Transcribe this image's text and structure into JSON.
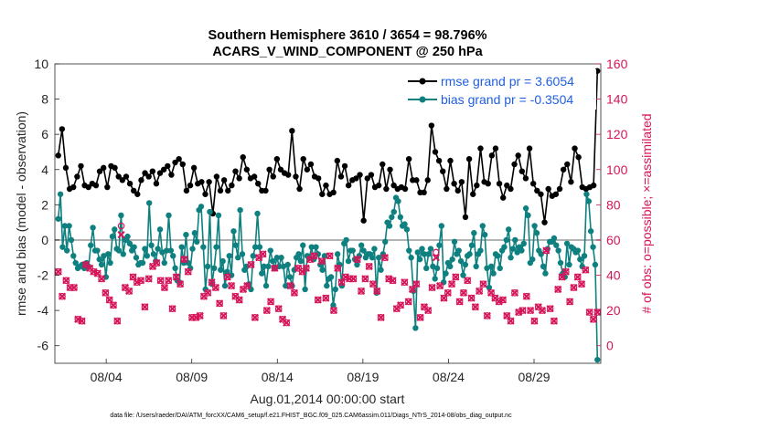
{
  "chart_data": {
    "type": "line",
    "title": "Southern Hemisphere 3610 / 3654 = 98.796%",
    "subtitle": "ACARS_V_WIND_COMPONENT @ 250 hPa",
    "xlabel": "Aug.01,2014 00:00:00 start",
    "ylabel": "rmse and bias (model - observation)",
    "y2label": "# of obs: o=possible; ×=assimilated",
    "xlim": [
      1,
      32.9
    ],
    "ylim": [
      -7,
      10
    ],
    "y2lim": [
      -10,
      160
    ],
    "x_ticks": [
      4,
      9,
      14,
      19,
      24,
      29
    ],
    "x_tick_labels": [
      "08/04",
      "08/09",
      "08/14",
      "08/19",
      "08/24",
      "08/29"
    ],
    "y_ticks": [
      -6,
      -4,
      -2,
      0,
      2,
      4,
      6,
      8,
      10
    ],
    "y2_ticks": [
      0,
      20,
      40,
      60,
      80,
      100,
      120,
      140,
      160
    ],
    "footer": "data file: /Users/raeder/DAI/ATM_forcXX/CAM6_setup/f.e21.FHIST_BGC.f09_025.CAM6assim.011/Diags_NTrS_2014-08/obs_diag_output.nc",
    "series": [
      {
        "name": "rmse grand pr = 3.6054",
        "color": "#000000",
        "values": [
          4.8,
          6.3,
          4.1,
          2.9,
          3.0,
          3.6,
          4.2,
          3.1,
          3.0,
          3.2,
          3.1,
          3.9,
          4.1,
          3.0,
          4.2,
          4.1,
          3.6,
          3.4,
          3.6,
          3.2,
          2.8,
          2.6,
          3.4,
          3.8,
          3.6,
          3.9,
          3.2,
          3.8,
          4.0,
          4.2,
          3.7,
          4.4,
          4.6,
          4.3,
          2.8,
          3.1,
          4.1,
          3.2,
          3.3,
          2.6,
          3.3,
          1.5,
          3.6,
          2.8,
          3.4,
          2.8,
          3.1,
          3.9,
          3.5,
          4.7,
          4.0,
          3.5,
          3.6,
          3.2,
          2.8,
          2.8,
          4.0,
          3.6,
          4.6,
          4.0,
          3.8,
          3.7,
          6.2,
          3.6,
          2.9,
          4.6,
          4.0,
          4.3,
          3.6,
          3.5,
          2.6,
          3.1,
          2.6,
          2.7,
          4.5,
          3.6,
          4.2,
          3.1,
          3.4,
          3.5,
          3.7,
          1.1,
          3.5,
          3.7,
          3.0,
          3.1,
          4.3,
          2.9,
          4.0,
          3.1,
          2.9,
          3.0,
          2.9,
          4.6,
          3.4,
          3.4,
          2.7,
          2.7,
          3.4,
          6.5,
          5.0,
          4.5,
          3.9,
          2.9,
          4.5,
          3.2,
          2.8,
          3.3,
          1.3,
          4.6,
          2.6,
          3.1,
          5.2,
          3.3,
          3.2,
          4.8,
          5.2,
          3.2,
          2.4,
          3.1,
          2.9,
          4.3,
          4.8,
          3.9,
          3.5,
          5.2,
          3.2,
          2.8,
          2.6,
          1.0,
          2.9,
          2.5,
          2.6,
          2.9,
          4.0,
          4.3,
          3.3,
          5.2,
          4.7,
          3.0,
          2.9,
          3.0,
          3.1,
          9.6
        ],
        "marker": "dot"
      },
      {
        "name": "bias grand pr = -0.3504",
        "color": "#0e8080",
        "values": [
          1.2,
          2.6,
          -0.4,
          0.8,
          -0.6,
          0.8,
          0.0,
          -0.9,
          -1.3,
          -1.6,
          -1.5,
          -1.4,
          -1.6,
          -1.3,
          -1.5,
          -0.3,
          0.7,
          -0.6,
          -0.6,
          -1.1,
          -1.4,
          -0.9,
          -2.1,
          -0.8,
          -1.3,
          0.2,
          0.6,
          -0.5,
          -0.6,
          1.4,
          -0.8,
          0.0,
          0.2,
          -0.2,
          -0.6,
          -0.4,
          -1.0,
          -1.4,
          -1.3,
          -1.3,
          -0.5,
          -0.9,
          2.1,
          -0.3,
          -0.8,
          -1.2,
          -0.5,
          0.6,
          -0.7,
          -1.3,
          -0.6,
          1.4,
          -0.6,
          -0.9,
          -1.6,
          -2.3,
          -2.4,
          -0.4,
          -1.3,
          0.3,
          -1.3,
          -1.6,
          -0.5,
          0.4,
          -0.1,
          1.7,
          1.9,
          -0.4,
          -2.8,
          -1.5,
          1.6,
          -2.5,
          -1.6,
          -0.4,
          1.4,
          -1.7,
          -1.2,
          -2.6,
          -1.8,
          -0.9,
          -2.0,
          0.5,
          -0.3,
          -1.0,
          1.7,
          -0.8,
          -1.7,
          -1.5,
          -2.5,
          -2.8,
          -0.9,
          -0.4,
          1.5,
          -0.4,
          -1.9,
          -1.5,
          -2.6,
          -1.5,
          -0.6,
          -1.2,
          -1.6,
          -1.0,
          -1.5,
          -1.0,
          -1.5,
          -2.6,
          -1.4,
          -2.1,
          -2.6,
          -1.7,
          -1.0,
          -0.8,
          -1.2,
          -0.3,
          -2.8,
          -0.9,
          -1.0,
          -0.4,
          -1.1,
          -0.4,
          -0.8,
          -1.4,
          -1.7,
          -0.9,
          -2.6,
          -2.2,
          -2.1,
          -3.7,
          -2.8,
          -0.8,
          -1.4,
          -2.6,
          -0.2,
          0.0,
          -1.2,
          -0.6,
          -0.6,
          -1.1,
          -1.4,
          -0.9,
          -0.3,
          -0.6,
          -1.0,
          -0.8,
          -0.8,
          -1.0,
          -0.5,
          -3.0,
          -1.0,
          -1.7,
          -0.8,
          -0.1,
          1.0,
          0.8,
          1.3,
          1.6,
          2.4,
          2.2,
          1.3,
          0.8,
          0.9,
          0.6,
          -0.6,
          -1.0,
          -2.9,
          -5.0,
          -0.7,
          -1.1,
          -0.5,
          -0.8,
          -1.6,
          -0.8,
          -0.5,
          -1.5,
          -2.2,
          -1.6,
          -0.3,
          0.8,
          -2.4,
          -1.9,
          -1.3,
          -1.5,
          -1.1,
          -0.1,
          -0.8,
          -0.6,
          -1.2,
          -2.0,
          -1.4,
          -0.9,
          -0.8,
          -0.3,
          0.4,
          -1.5,
          -0.8,
          -0.6,
          0.8,
          0.3,
          -1.6,
          -2.7,
          -1.5,
          -1.9,
          -0.8,
          -0.9,
          -1.6,
          -0.6,
          -0.4,
          0.0,
          0.6,
          -1.0,
          -0.5,
          0.0,
          -0.7,
          -0.4,
          -0.6,
          -0.2,
          1.8,
          1.4,
          -1.3,
          -1.1,
          0.8,
          0.4,
          -0.6,
          -0.8,
          -1.5,
          -1.9,
          -0.5,
          -0.1,
          -0.1,
          0.1,
          -0.3,
          -0.6,
          -1.3,
          -1.9,
          -2.1,
          -0.2,
          -1.4,
          -0.4,
          -0.5,
          -0.7,
          -0.6,
          -1.1,
          -1.5,
          -0.9,
          2.6,
          2.2,
          0.5,
          -0.4,
          -1.4,
          -6.8
        ],
        "marker": "dot"
      },
      {
        "name": "obs possible",
        "color": "#d6155a",
        "axis": "right",
        "marker": "circle",
        "values": [
          42,
          28,
          37,
          33,
          33,
          15,
          14,
          46,
          44,
          42,
          41,
          38,
          30,
          26,
          23,
          14,
          68,
          33,
          31,
          39,
          36,
          37,
          22,
          38,
          45,
          47,
          37,
          33,
          37,
          21,
          39,
          35,
          49,
          42,
          16,
          16,
          17,
          28,
          30,
          36,
          33,
          24,
          17,
          39,
          34,
          28,
          26,
          32,
          34,
          46,
          16,
          50,
          52,
          20,
          25,
          44,
          21,
          15,
          13,
          34,
          30,
          44,
          42,
          44,
          49,
          51,
          26,
          48,
          27,
          51,
          20,
          44,
          36,
          39,
          38,
          38,
          49,
          31,
          38,
          45,
          35,
          31,
          16,
          50,
          38,
          37,
          21,
          23,
          36,
          25,
          32,
          35,
          16,
          22,
          20,
          33,
          53,
          34,
          27,
          30,
          35,
          39,
          25,
          30,
          37,
          27,
          22,
          31,
          35,
          17,
          30,
          27,
          25,
          26,
          17,
          14,
          30,
          19,
          20,
          28,
          20,
          14,
          22,
          20,
          54,
          21,
          14,
          32,
          39,
          42,
          25,
          33,
          39,
          35,
          43,
          19,
          15,
          19
        ]
      },
      {
        "name": "obs assimilated",
        "color": "#d6155a",
        "axis": "right",
        "marker": "x",
        "values": [
          42,
          28,
          37,
          33,
          33,
          15,
          14,
          46,
          44,
          42,
          41,
          38,
          30,
          26,
          23,
          14,
          63,
          33,
          31,
          39,
          36,
          37,
          22,
          38,
          45,
          47,
          37,
          33,
          37,
          21,
          39,
          35,
          49,
          42,
          16,
          16,
          17,
          28,
          30,
          36,
          33,
          24,
          17,
          39,
          34,
          28,
          26,
          32,
          34,
          46,
          16,
          50,
          52,
          20,
          25,
          44,
          21,
          15,
          13,
          34,
          30,
          44,
          42,
          44,
          49,
          51,
          26,
          48,
          27,
          51,
          20,
          44,
          36,
          39,
          38,
          38,
          49,
          31,
          38,
          45,
          35,
          31,
          16,
          50,
          38,
          37,
          21,
          23,
          36,
          25,
          32,
          35,
          16,
          22,
          20,
          33,
          50,
          34,
          27,
          30,
          35,
          39,
          25,
          30,
          37,
          27,
          22,
          31,
          35,
          17,
          30,
          27,
          25,
          26,
          17,
          14,
          30,
          19,
          20,
          28,
          20,
          14,
          22,
          20,
          54,
          21,
          14,
          32,
          39,
          42,
          25,
          33,
          39,
          35,
          43,
          19,
          15,
          19
        ]
      }
    ]
  }
}
